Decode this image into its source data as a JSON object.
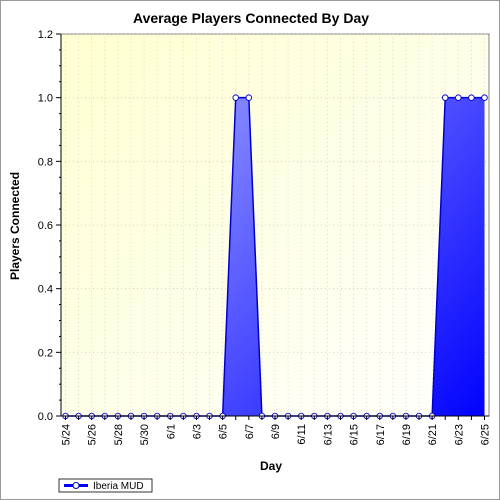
{
  "chart_data": {
    "type": "area",
    "title": "Average Players Connected By Day",
    "xlabel": "Day",
    "ylabel": "Players Connected",
    "ylim": [
      0,
      1.2
    ],
    "yticks": [
      "0.0",
      "0.2",
      "0.4",
      "0.6",
      "0.8",
      "1.0",
      "1.2"
    ],
    "x": [
      "5/24",
      "5/25",
      "5/26",
      "5/27",
      "5/28",
      "5/29",
      "5/30",
      "5/31",
      "6/1",
      "6/2",
      "6/3",
      "6/4",
      "6/5",
      "6/6",
      "6/7",
      "6/8",
      "6/9",
      "6/10",
      "6/11",
      "6/12",
      "6/13",
      "6/14",
      "6/15",
      "6/16",
      "6/17",
      "6/18",
      "6/19",
      "6/20",
      "6/21",
      "6/22",
      "6/23",
      "6/24",
      "6/25"
    ],
    "xtick_labels": [
      "5/24",
      "5/26",
      "5/28",
      "5/30",
      "6/1",
      "6/3",
      "6/5",
      "6/7",
      "6/9",
      "6/11",
      "6/13",
      "6/15",
      "6/17",
      "6/19",
      "6/21",
      "6/23",
      "6/25"
    ],
    "series": [
      {
        "name": "Iberia MUD",
        "values": [
          0,
          0,
          0,
          0,
          0,
          0,
          0,
          0,
          0,
          0,
          0,
          0,
          0,
          1,
          1,
          0,
          0,
          0,
          0,
          0,
          0,
          0,
          0,
          0,
          0,
          0,
          0,
          0,
          0,
          1,
          1,
          1,
          1
        ]
      }
    ],
    "grid": true,
    "legend": "bottom-left",
    "colors": {
      "plot_background_top": "#ffffd0",
      "plot_background_bottom": "#ffffff",
      "area_light": "#9aa0ff",
      "area_dark": "#0000ff",
      "line": "#0000cc",
      "marker_fill": "#ffffff"
    }
  }
}
